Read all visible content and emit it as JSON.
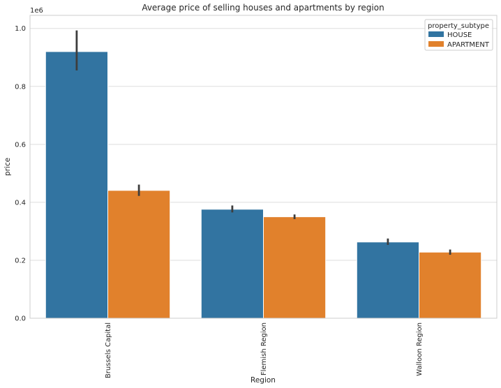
{
  "chart_data": {
    "type": "bar",
    "title": "Average price of selling houses and apartments by region",
    "xlabel": "Region",
    "ylabel": "price",
    "offset_label": "1e6",
    "categories": [
      "Brussels Capital",
      "Flemish Region",
      "Walloon Region"
    ],
    "series": [
      {
        "name": "HOUSE",
        "color": "#3274a1",
        "values": [
          920000,
          376000,
          263000
        ],
        "err_low": [
          855000,
          365000,
          253000
        ],
        "err_high": [
          993000,
          389000,
          275000
        ]
      },
      {
        "name": "APARTMENT",
        "color": "#e1812c",
        "values": [
          441000,
          350000,
          228000
        ],
        "err_low": [
          422000,
          342000,
          219000
        ],
        "err_high": [
          461000,
          358000,
          237000
        ]
      }
    ],
    "yticks": [
      0,
      200000,
      400000,
      600000,
      800000,
      1000000
    ],
    "ytick_labels": [
      "0.0",
      "0.2",
      "0.4",
      "0.6",
      "0.8",
      "1.0"
    ],
    "ylim": [
      0,
      1045000
    ],
    "grid": true,
    "legend": {
      "title": "property_subtype",
      "position": "top-right"
    }
  }
}
